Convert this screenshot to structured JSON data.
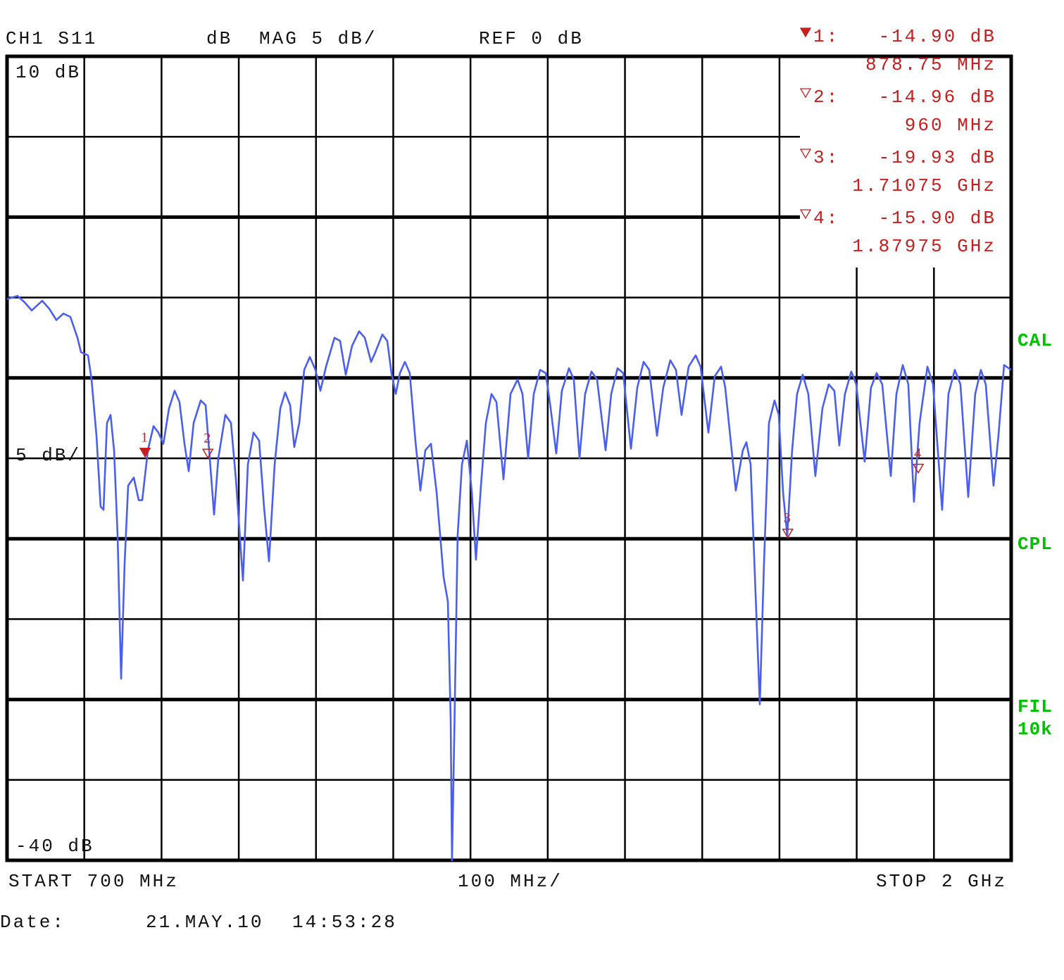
{
  "chart_data": {
    "type": "line",
    "channel_label": "CH1 S11",
    "format_unit": "dB",
    "scale_label": "MAG 5 dB/",
    "reference_label": "REF 0 dB",
    "ylim": [
      -40,
      10
    ],
    "yticks": [
      {
        "value": 10,
        "label": "10 dB"
      },
      5,
      0,
      -5,
      -10,
      {
        "value": -15,
        "label": "5 dB/"
      },
      -20,
      -25,
      -30,
      -35,
      {
        "value": -40,
        "label": "-40 dB"
      }
    ],
    "xlim": [
      700,
      2000
    ],
    "xticks": [
      700,
      800,
      900,
      1000,
      1100,
      1200,
      1300,
      1400,
      1500,
      1600,
      1700,
      1800,
      1900,
      2000
    ],
    "start_label": "START 700 MHz",
    "span_label": "100 MHz/",
    "stop_label": "STOP 2 GHz",
    "status": [
      "CAL",
      "CPL",
      "FIL",
      "10k"
    ],
    "date_caption": "Date:",
    "date": "21.MAY.10",
    "time": "14:53:28",
    "grid": true,
    "active_marker": "1",
    "marker_color": "#c81e1e",
    "markers": [
      {
        "label": "1",
        "id_label": "1:",
        "value": -14.9,
        "value_label": "-14.90 dB",
        "freq": 878.75,
        "freq_label": "878.75 MHz"
      },
      {
        "label": "2",
        "id_label": "2:",
        "value": -14.96,
        "value_label": "-14.96 dB",
        "freq": 960,
        "freq_label": "960 MHz"
      },
      {
        "label": "3",
        "id_label": "3:",
        "value": -19.93,
        "value_label": "-19.93 dB",
        "freq": 1710.75,
        "freq_label": "1.71075 GHz"
      },
      {
        "label": "4",
        "id_label": "4:",
        "value": -15.9,
        "value_label": "-15.90 dB",
        "freq": 1879.75,
        "freq_label": "1.87975 GHz"
      }
    ],
    "x": [
      700,
      713.7,
      722.8,
      731.9,
      745.6,
      754.7,
      763.8,
      772.9,
      782.0,
      791.2,
      795.7,
      804.8,
      809.4,
      815.8,
      821.2,
      824.9,
      829.4,
      834.0,
      838.6,
      843.1,
      847.7,
      852.2,
      856.8,
      864.1,
      870.5,
      875.0,
      882.3,
      889.6,
      896.0,
      902.4,
      909.7,
      917.0,
      923.3,
      929.7,
      935.2,
      941.6,
      950.7,
      957.1,
      962.5,
      968.0,
      973.5,
      982.6,
      989.9,
      996.3,
      1005.4,
      1011.8,
      1019.1,
      1026.4,
      1032.7,
      1039.1,
      1046.4,
      1053.7,
      1060.1,
      1066.5,
      1071.9,
      1078.3,
      1084.7,
      1092.0,
      1099.3,
      1105.7,
      1113.0,
      1123.9,
      1131.2,
      1138.5,
      1146.7,
      1155.8,
      1163.1,
      1171.3,
      1176.8,
      1185.9,
      1192.3,
      1197.7,
      1203.2,
      1208.7,
      1215.1,
      1221.4,
      1228.7,
      1235.1,
      1241.5,
      1248.8,
      1256.1,
      1265.2,
      1270.7,
      1274.3,
      1276.1,
      1278.9,
      1283.4,
      1288.9,
      1295.3,
      1301.7,
      1307.1,
      1313.5,
      1319.9,
      1327.2,
      1333.6,
      1342.7,
      1351.8,
      1360.9,
      1367.3,
      1374.6,
      1381.9,
      1390.1,
      1397.4,
      1403.8,
      1411.0,
      1418.3,
      1427.5,
      1433.8,
      1441.1,
      1448.4,
      1456.6,
      1463.9,
      1474.9,
      1482.2,
      1490.4,
      1497.7,
      1507.7,
      1515.9,
      1524.1,
      1531.4,
      1541.4,
      1549.6,
      1558.7,
      1566.0,
      1573.3,
      1582.4,
      1591.5,
      1597.9,
      1608.0,
      1616.2,
      1624.4,
      1629.8,
      1643.5,
      1652.6,
      1657.2,
      1662.7,
      1674.5,
      1680.0,
      1686.4,
      1693.6,
      1699.1,
      1704.6,
      1710.1,
      1716.4,
      1722.8,
      1730.1,
      1737.4,
      1746.5,
      1755.6,
      1763.8,
      1771.1,
      1777.5,
      1784.8,
      1793.0,
      1799.4,
      1810.3,
      1818.5,
      1825.8,
      1833.1,
      1844.1,
      1851.4,
      1859.6,
      1866.8,
      1874.1,
      1881.4,
      1891.5,
      1898.8,
      1910.6,
      1918.8,
      1927.0,
      1934.3,
      1944.4,
      1953.4,
      1960.7,
      1967.1,
      1977.1,
      1983.5,
      1990.8,
      2000.0
    ],
    "series": [
      {
        "name": "S11",
        "color": "#4a5ef0",
        "values": [
          -5.1,
          -4.9,
          -5.3,
          -5.8,
          -5.2,
          -5.7,
          -6.4,
          -6.0,
          -6.2,
          -7.5,
          -8.4,
          -8.6,
          -10.1,
          -13.6,
          -18.0,
          -18.2,
          -12.8,
          -12.3,
          -14.5,
          -19.8,
          -28.7,
          -21.5,
          -16.7,
          -16.2,
          -17.6,
          -17.6,
          -14.5,
          -13.0,
          -13.4,
          -14.1,
          -11.9,
          -10.8,
          -11.5,
          -14.1,
          -15.8,
          -12.8,
          -11.4,
          -11.7,
          -15.0,
          -18.5,
          -15.0,
          -12.3,
          -12.8,
          -16.3,
          -22.6,
          -15.4,
          -13.4,
          -13.9,
          -18.0,
          -21.4,
          -15.4,
          -11.9,
          -10.9,
          -11.7,
          -14.3,
          -12.8,
          -9.5,
          -8.7,
          -9.5,
          -10.8,
          -9.3,
          -7.5,
          -7.7,
          -9.8,
          -8.0,
          -7.1,
          -7.5,
          -9.0,
          -8.4,
          -7.3,
          -7.7,
          -9.7,
          -11.0,
          -9.7,
          -9.0,
          -9.7,
          -13.9,
          -17.0,
          -14.5,
          -14.1,
          -17.1,
          -22.4,
          -23.9,
          -31.2,
          -40.0,
          -32.5,
          -19.8,
          -15.4,
          -13.9,
          -17.1,
          -21.3,
          -16.7,
          -12.8,
          -11.0,
          -11.5,
          -16.3,
          -11.0,
          -10.1,
          -11.0,
          -15.0,
          -11.0,
          -9.5,
          -9.7,
          -11.9,
          -14.7,
          -10.8,
          -9.4,
          -10.1,
          -15.0,
          -11.0,
          -9.6,
          -10.1,
          -14.5,
          -11.0,
          -9.4,
          -9.7,
          -14.4,
          -10.6,
          -9.0,
          -9.5,
          -13.6,
          -10.6,
          -8.9,
          -9.5,
          -12.3,
          -9.3,
          -8.6,
          -9.3,
          -13.4,
          -9.9,
          -9.3,
          -10.6,
          -17.0,
          -14.5,
          -14.0,
          -15.4,
          -30.3,
          -21.5,
          -12.8,
          -11.4,
          -12.3,
          -17.1,
          -19.8,
          -14.5,
          -11.0,
          -9.8,
          -11.0,
          -16.1,
          -11.9,
          -10.4,
          -10.8,
          -14.2,
          -11.0,
          -9.6,
          -10.4,
          -15.2,
          -10.6,
          -9.7,
          -10.4,
          -16.1,
          -11.0,
          -9.2,
          -10.4,
          -17.7,
          -12.8,
          -9.3,
          -10.4,
          -18.2,
          -11.0,
          -9.5,
          -10.4,
          -17.4,
          -11.0,
          -9.5,
          -10.4,
          -16.7,
          -13.6,
          -9.2,
          -9.5
        ]
      }
    ]
  }
}
